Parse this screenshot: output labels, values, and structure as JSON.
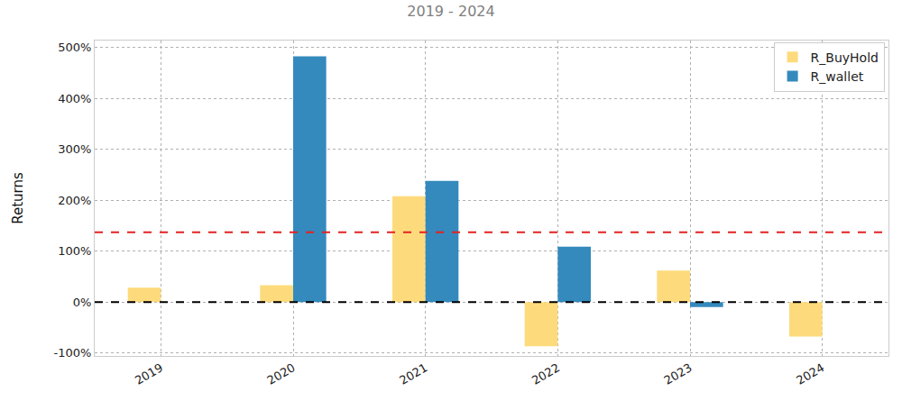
{
  "chart_data": {
    "type": "bar",
    "title": "2019 - 2024",
    "y_label": "Returns",
    "categories": [
      "2019",
      "2020",
      "2021",
      "2022",
      "2023",
      "2024"
    ],
    "series": [
      {
        "name": "R_BuyHold",
        "color": "#fddb7c",
        "values": [
          28,
          33,
          208,
          -87,
          62,
          -68
        ]
      },
      {
        "name": "R_wallet",
        "color": "#348abd",
        "values": [
          null,
          483,
          238,
          109,
          -10,
          null
        ]
      }
    ],
    "reference_lines": [
      {
        "value": 137,
        "color": "#e32222",
        "line_style": "dashed"
      },
      {
        "value": 0,
        "color": "#000000",
        "line_style": "dashed"
      }
    ],
    "ylim": [
      -106,
      514
    ],
    "yticks": [
      {
        "value": -100,
        "label": "-100%"
      },
      {
        "value": 0,
        "label": "0%"
      },
      {
        "value": 100,
        "label": "100%"
      },
      {
        "value": 200,
        "label": "200%"
      },
      {
        "value": 300,
        "label": "300%"
      },
      {
        "value": 400,
        "label": "400%"
      },
      {
        "value": 500,
        "label": "500%"
      }
    ],
    "grid": true,
    "legend": "upper right"
  }
}
